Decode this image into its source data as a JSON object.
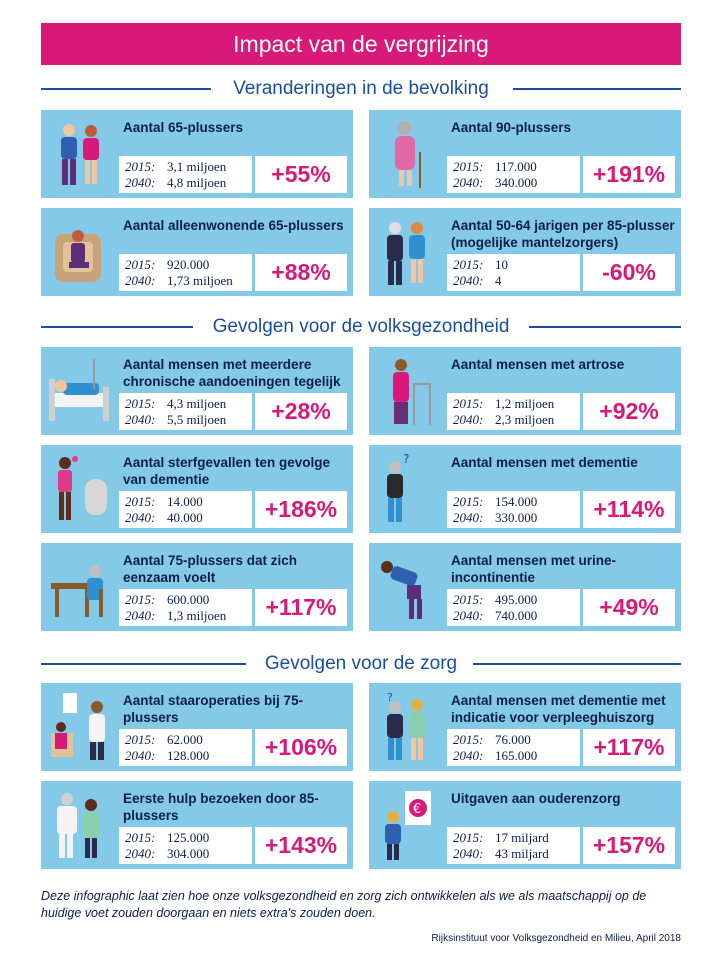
{
  "title": "Impact van de vergrijzing",
  "sections": [
    {
      "heading": "Veranderingen in de bevolking",
      "cards": [
        {
          "title": "Aantal 65-plussers",
          "y1": "2015:",
          "v1": "3,1 miljoen",
          "y2": "2040:",
          "v2": "4,8 miljoen",
          "pct": "+55%",
          "icon": "elderly-couple-icon"
        },
        {
          "title": "Aantal 90-plussers",
          "y1": "2015:",
          "v1": "117.000",
          "y2": "2040:",
          "v2": "340.000",
          "pct": "+191%",
          "icon": "elderly-woman-cane-icon"
        },
        {
          "title": "Aantal alleenwonende 65-plussers",
          "y1": "2015:",
          "v1": "920.000",
          "y2": "2040:",
          "v2": "1,73 miljoen",
          "pct": "+88%",
          "icon": "person-in-armchair-icon"
        },
        {
          "title": "Aantal 50-64 jarigen per 85-plusser (mogelijke mantelzorgers)",
          "y1": "2015:",
          "v1": "10",
          "y2": "2040:",
          "v2": "4",
          "pct": "-60%",
          "icon": "caregiver-elderly-icon"
        }
      ]
    },
    {
      "heading": "Gevolgen voor de volksgezondheid",
      "cards": [
        {
          "title": "Aantal mensen met meerdere chronische aandoeningen tegelijk",
          "y1": "2015:",
          "v1": "4,3 miljoen",
          "y2": "2040:",
          "v2": "5,5 miljoen",
          "pct": "+28%",
          "icon": "hospital-bed-icon"
        },
        {
          "title": "Aantal mensen met artrose",
          "y1": "2015:",
          "v1": "1,2 miljoen",
          "y2": "2040:",
          "v2": "2,3 miljoen",
          "pct": "+92%",
          "icon": "walker-icon"
        },
        {
          "title": "Aantal sterfgevallen ten gevolge van dementie",
          "y1": "2015:",
          "v1": "14.000",
          "y2": "2040:",
          "v2": "40.000",
          "pct": "+186%",
          "icon": "grave-flower-icon"
        },
        {
          "title": "Aantal mensen met dementie",
          "y1": "2015:",
          "v1": "154.000",
          "y2": "2040:",
          "v2": "330.000",
          "pct": "+114%",
          "icon": "confused-man-icon"
        },
        {
          "title": "Aantal 75-plussers dat zich eenzaam voelt",
          "y1": "2015:",
          "v1": "600.000",
          "y2": "2040:",
          "v2": "1,3 miljoen",
          "pct": "+117%",
          "icon": "lonely-table-icon"
        },
        {
          "title": "Aantal mensen met urine-incontinentie",
          "y1": "2015:",
          "v1": "495.000",
          "y2": "2040:",
          "v2": "740.000",
          "pct": "+49%",
          "icon": "bending-man-icon"
        }
      ]
    },
    {
      "heading": "Gevolgen voor de zorg",
      "cards": [
        {
          "title": "Aantal staaroperaties bij 75-plussers",
          "y1": "2015:",
          "v1": "62.000",
          "y2": "2040:",
          "v2": "128.000",
          "pct": "+106%",
          "icon": "eye-exam-icon"
        },
        {
          "title": "Aantal mensen met dementie met indicatie voor verpleeghuiszorg",
          "y1": "2015:",
          "v1": "76.000",
          "y2": "2040:",
          "v2": "165.000",
          "pct": "+117%",
          "icon": "dementia-care-icon"
        },
        {
          "title": "Eerste hulp bezoeken door 85-plussers",
          "y1": "2015:",
          "v1": "125.000",
          "y2": "2040:",
          "v2": "304.000",
          "pct": "+143%",
          "icon": "emergency-care-icon"
        },
        {
          "title": "Uitgaven aan ouderenzorg",
          "y1": "2015:",
          "v1": "17 miljard",
          "y2": "2040:",
          "v2": "43 miljard",
          "pct": "+157%",
          "icon": "euro-chart-icon"
        }
      ]
    }
  ],
  "footer": "Deze infographic laat zien hoe onze volksgezondheid en zorg zich ontwikkelen als we als maatschappij op de huidige voet zouden doorgaan en niets extra's zouden doen.",
  "source": "Rijksinstituut voor Volksgezondheid en Milieu, April 2018",
  "colors": {
    "accent": "#d8197a",
    "card": "#85c9e8",
    "navy": "#0b1f4a",
    "line": "#1a4fa0"
  }
}
